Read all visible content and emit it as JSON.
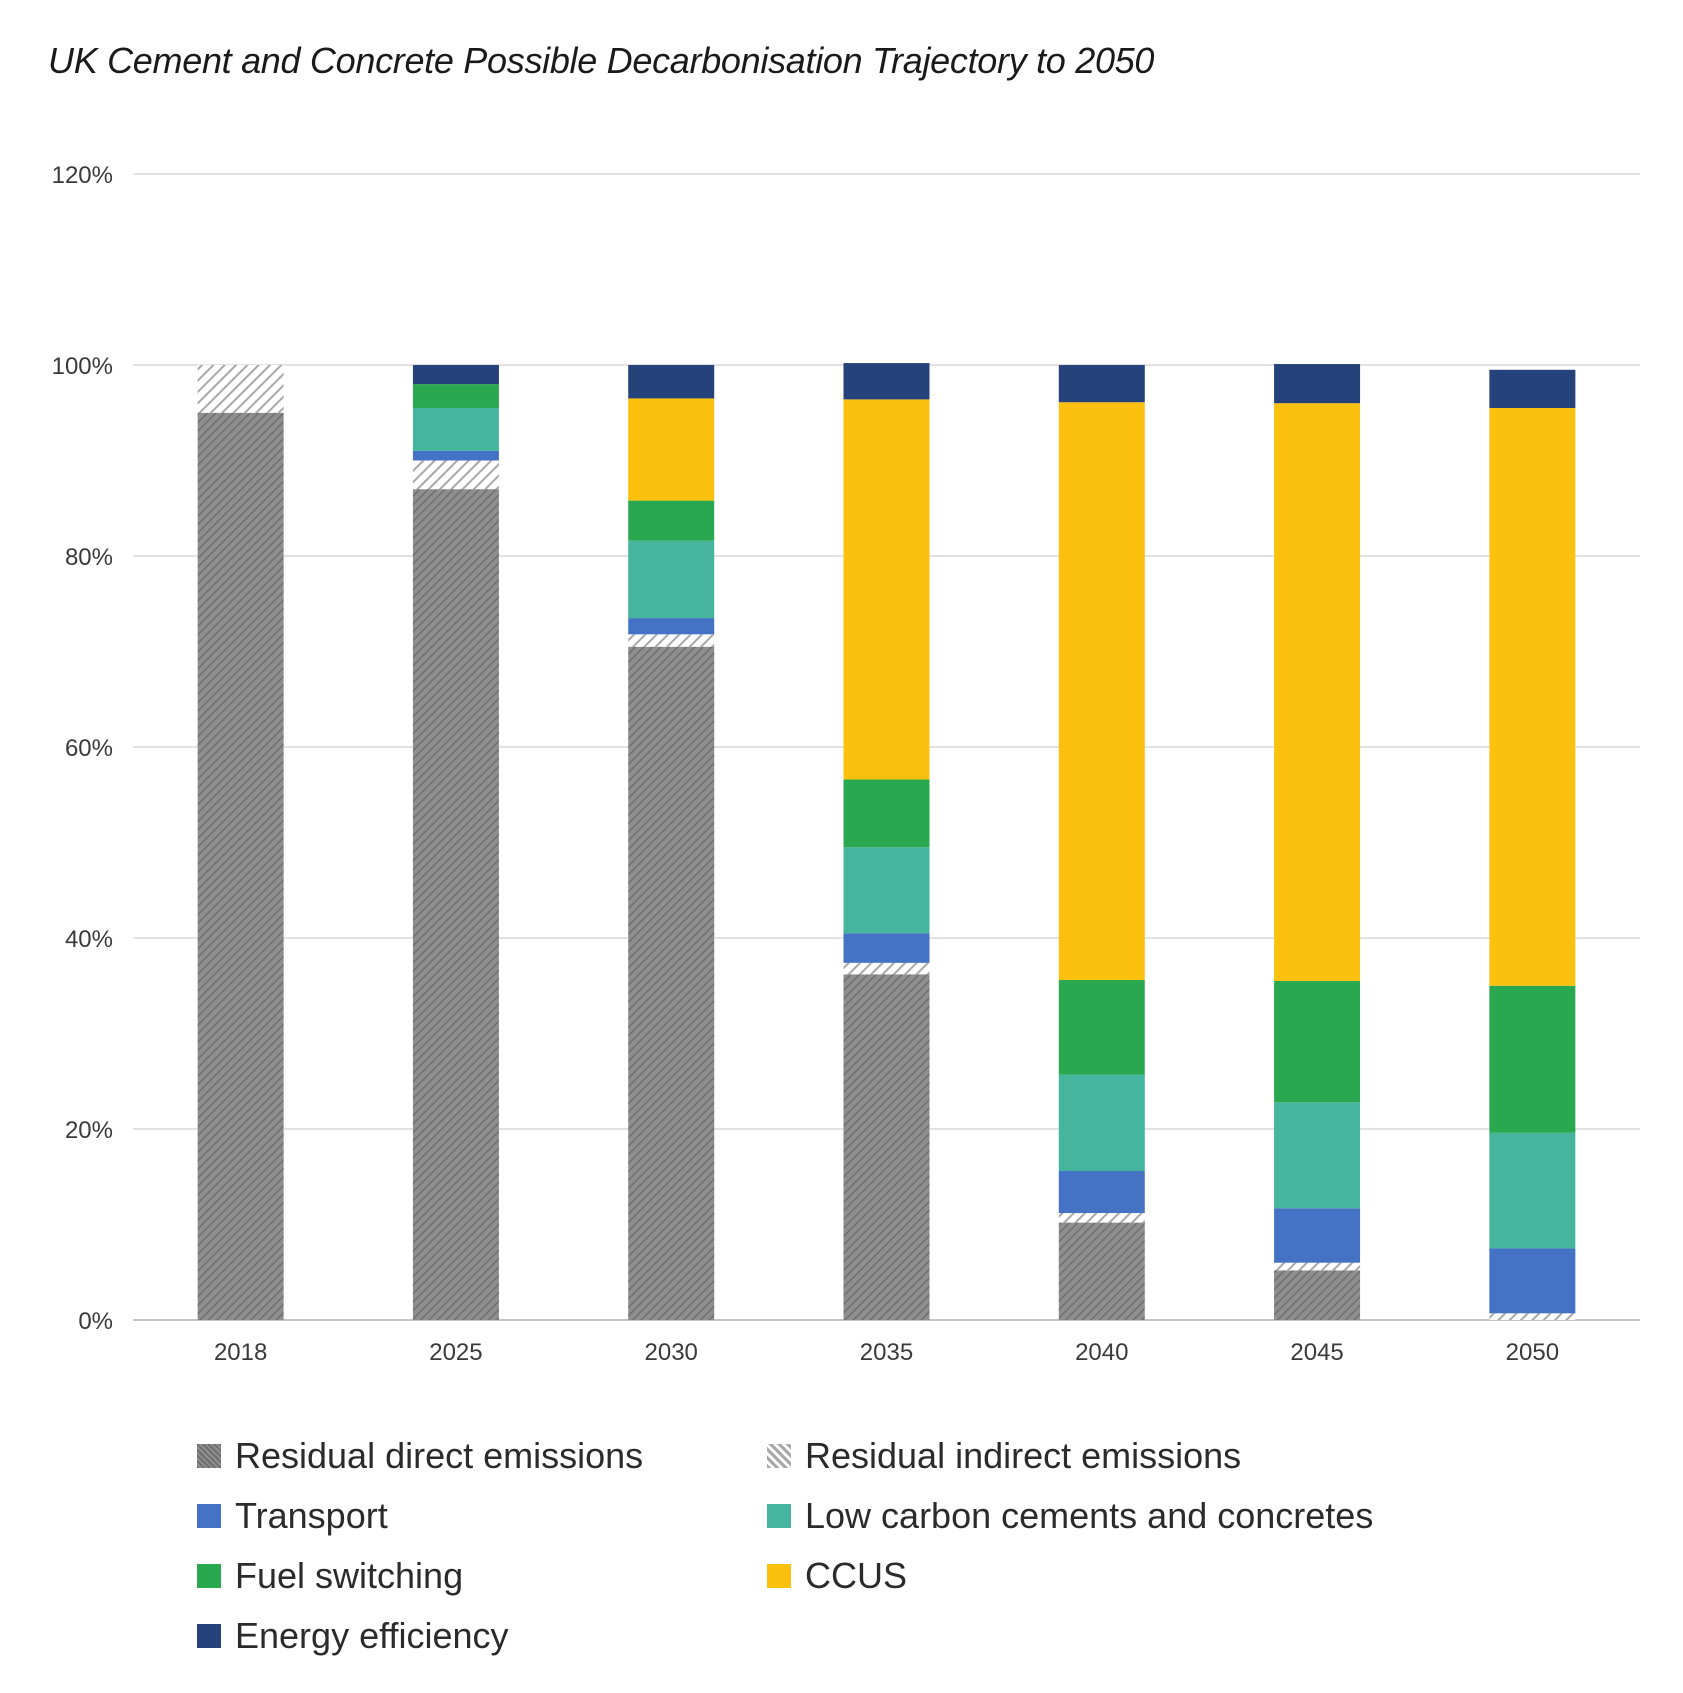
{
  "title": "UK Cement and Concrete Possible Decarbonisation Trajectory to 2050",
  "chart_data": {
    "type": "bar",
    "stacked": true,
    "title": "UK Cement and Concrete Possible Decarbonisation Trajectory to 2050",
    "xlabel": "",
    "ylabel": "",
    "ylim": [
      0,
      1.2
    ],
    "yticks": [
      "0%",
      "20%",
      "40%",
      "60%",
      "80%",
      "100%",
      "120%"
    ],
    "grid": true,
    "legend_position": "bottom",
    "categories": [
      "2018",
      "2025",
      "2030",
      "2035",
      "2040",
      "2045",
      "2050"
    ],
    "series": [
      {
        "name": "Residual direct emissions",
        "color": "#8a8a8a",
        "pattern": "dense-hatch",
        "values": [
          0.95,
          0.87,
          0.705,
          0.362,
          0.102,
          0.052,
          0.0
        ]
      },
      {
        "name": "Residual indirect emissions",
        "color": "#c8c8c8",
        "pattern": "light-hatch",
        "values": [
          0.05,
          0.03,
          0.013,
          0.012,
          0.01,
          0.008,
          0.007
        ]
      },
      {
        "name": "Transport",
        "color": "#4472c4",
        "values": [
          0.0,
          0.01,
          0.017,
          0.031,
          0.044,
          0.057,
          0.068
        ]
      },
      {
        "name": "Low carbon cements and concretes",
        "color": "#45b59e",
        "values": [
          0.0,
          0.045,
          0.081,
          0.09,
          0.101,
          0.111,
          0.121
        ]
      },
      {
        "name": "Fuel switching",
        "color": "#2aa84f",
        "values": [
          0.0,
          0.025,
          0.042,
          0.071,
          0.099,
          0.127,
          0.154
        ]
      },
      {
        "name": "CCUS",
        "color": "#fcc10e",
        "values": [
          0.0,
          0.0,
          0.107,
          0.398,
          0.605,
          0.605,
          0.605
        ]
      },
      {
        "name": "Energy efficiency",
        "color": "#26427a",
        "values": [
          0.0,
          0.02,
          0.035,
          0.038,
          0.039,
          0.041,
          0.04
        ]
      }
    ]
  },
  "legend": {
    "items": [
      {
        "label": "Residual direct emissions",
        "icon": "dense-hatch-swatch",
        "color": "#8a8a8a"
      },
      {
        "label": "Residual indirect emissions",
        "icon": "light-hatch-swatch",
        "color": "#c8c8c8"
      },
      {
        "label": "Transport",
        "icon": "square-swatch",
        "color": "#4472c4"
      },
      {
        "label": "Low carbon cements and concretes",
        "icon": "square-swatch",
        "color": "#45b59e"
      },
      {
        "label": "Fuel switching",
        "icon": "square-swatch",
        "color": "#2aa84f"
      },
      {
        "label": "CCUS",
        "icon": "square-swatch",
        "color": "#fcc10e"
      },
      {
        "label": "Energy efficiency",
        "icon": "square-swatch",
        "color": "#26427a"
      }
    ]
  }
}
